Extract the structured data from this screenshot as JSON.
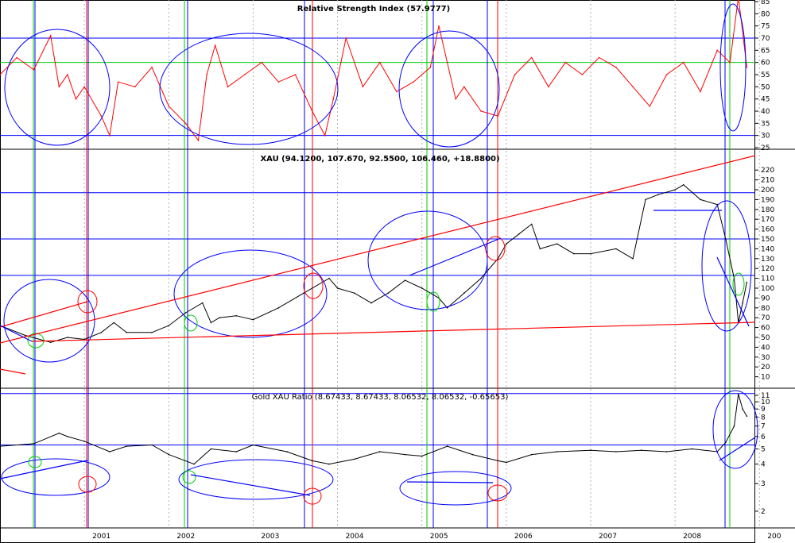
{
  "colors": {
    "background": "#ffffff",
    "price": "#000000",
    "rsi": "#ff0000",
    "blue_lines": "#0000ff",
    "green_lines": "#00cc00",
    "red_lines": "#ff0000",
    "grid_dotted": "#b0b0b0"
  },
  "chart_data": [
    {
      "type": "line",
      "panel": "rsi",
      "title": "Relative Strength Index (57.9777)",
      "ylim": [
        25,
        85
      ],
      "y_ticks": [
        25,
        30,
        35,
        40,
        45,
        50,
        55,
        60,
        65,
        70,
        75,
        80,
        85
      ],
      "y_labels": [
        "25",
        "30",
        "35",
        "40",
        "45",
        "50",
        "55",
        "60",
        "65",
        "70",
        "75",
        "80",
        "85"
      ],
      "reference_lines": [
        30,
        60,
        70
      ],
      "series": [
        {
          "x": [
            2000.0,
            2000.2,
            2000.4,
            2000.6,
            2000.7,
            2000.8,
            2000.9,
            2001.0,
            2001.2,
            2001.3,
            2001.4,
            2001.6,
            2001.8,
            2002.0,
            2002.2,
            2002.35,
            2002.45,
            2002.55,
            2002.7,
            2002.9,
            2003.1,
            2003.3,
            2003.5,
            2003.7,
            2003.85,
            2003.95,
            2004.1,
            2004.3,
            2004.5,
            2004.7,
            2004.9,
            2005.1,
            2005.2,
            2005.3,
            2005.4,
            2005.5,
            2005.7,
            2005.9,
            2006.1,
            2006.3,
            2006.5,
            2006.7,
            2006.9,
            2007.1,
            2007.3,
            2007.5,
            2007.7,
            2007.9,
            2008.1,
            2008.3,
            2008.5,
            2008.65,
            2008.75,
            2008.85
          ],
          "values": [
            55,
            62,
            57,
            71,
            50,
            55,
            45,
            50,
            38,
            30,
            52,
            50,
            58,
            42,
            35,
            28,
            55,
            67,
            50,
            55,
            60,
            52,
            55,
            40,
            30,
            45,
            70,
            50,
            60,
            48,
            52,
            58,
            75,
            60,
            45,
            50,
            40,
            38,
            55,
            62,
            50,
            60,
            55,
            62,
            58,
            50,
            42,
            55,
            60,
            48,
            65,
            60,
            87,
            58
          ]
        }
      ]
    },
    {
      "type": "line",
      "panel": "price",
      "title": "XAU (94.1200, 107.670, 92.5500, 106.460, +18.8800)",
      "ylim": [
        0,
        225
      ],
      "y_ticks": [
        10,
        20,
        30,
        40,
        50,
        60,
        70,
        80,
        90,
        100,
        110,
        120,
        130,
        140,
        150,
        160,
        170,
        180,
        190,
        200,
        210,
        220
      ],
      "y_labels": [
        "10",
        "20",
        "30",
        "40",
        "50",
        "60",
        "70",
        "80",
        "90",
        "100",
        "110",
        "120",
        "130",
        "140",
        "150",
        "160",
        "170",
        "180",
        "190",
        "200",
        "210",
        "220"
      ],
      "reference_lines": [
        113,
        150,
        197
      ],
      "series": [
        {
          "x": [
            2000.0,
            2000.3,
            2000.6,
            2000.8,
            2001.0,
            2001.2,
            2001.35,
            2001.5,
            2001.8,
            2002.0,
            2002.2,
            2002.4,
            2002.5,
            2002.6,
            2002.8,
            2003.0,
            2003.3,
            2003.6,
            2003.9,
            2004.0,
            2004.2,
            2004.4,
            2004.6,
            2004.8,
            2005.0,
            2005.2,
            2005.3,
            2005.5,
            2005.7,
            2005.9,
            2006.0,
            2006.15,
            2006.3,
            2006.4,
            2006.6,
            2006.8,
            2007.0,
            2007.3,
            2007.5,
            2007.65,
            2007.8,
            2008.0,
            2008.1,
            2008.3,
            2008.5,
            2008.6,
            2008.7,
            2008.75,
            2008.8,
            2008.85
          ],
          "values": [
            62,
            52,
            45,
            50,
            48,
            55,
            65,
            55,
            55,
            62,
            75,
            85,
            65,
            70,
            72,
            68,
            80,
            95,
            110,
            100,
            95,
            85,
            95,
            108,
            100,
            90,
            80,
            95,
            110,
            130,
            145,
            155,
            165,
            140,
            145,
            135,
            135,
            140,
            130,
            190,
            195,
            200,
            205,
            190,
            185,
            150,
            110,
            65,
            85,
            106
          ]
        }
      ]
    },
    {
      "type": "line",
      "panel": "ratio",
      "title": "Gold XAU Ratio (8.67433, 8.67433, 8.06532, 8.06532, -0.65653)",
      "ylim": [
        1.6,
        11.8
      ],
      "y_ticks": [
        2,
        3,
        4,
        5,
        6,
        7,
        8,
        9,
        10,
        11
      ],
      "y_labels": [
        "2",
        "3",
        "4",
        "5",
        "6",
        "7",
        "8",
        "9",
        "10",
        "11"
      ],
      "reference_lines": [
        5.3,
        11.3
      ],
      "series": [
        {
          "x": [
            2000.0,
            2000.4,
            2000.7,
            2000.8,
            2001.0,
            2001.3,
            2001.5,
            2001.8,
            2002.0,
            2002.3,
            2002.5,
            2002.8,
            2003.0,
            2003.4,
            2003.7,
            2003.9,
            2004.2,
            2004.5,
            2004.8,
            2005.0,
            2005.3,
            2005.6,
            2005.9,
            2006.0,
            2006.3,
            2006.6,
            2007.0,
            2007.3,
            2007.6,
            2007.9,
            2008.2,
            2008.5,
            2008.6,
            2008.7,
            2008.75,
            2008.8,
            2008.85
          ],
          "values": [
            5.2,
            5.4,
            6.3,
            6.0,
            5.6,
            4.8,
            5.2,
            5.3,
            4.6,
            4.0,
            5.0,
            4.8,
            5.3,
            4.8,
            4.2,
            4.0,
            4.3,
            4.8,
            4.6,
            4.5,
            5.2,
            4.6,
            4.2,
            4.1,
            4.6,
            4.8,
            4.9,
            4.8,
            4.9,
            4.8,
            5.0,
            4.8,
            5.5,
            7.0,
            11.2,
            9.0,
            8.1
          ]
        }
      ]
    }
  ],
  "x_axis": {
    "years": [
      "2001",
      "2002",
      "2003",
      "2004",
      "2005",
      "2006",
      "2007",
      "2008",
      "200"
    ]
  }
}
